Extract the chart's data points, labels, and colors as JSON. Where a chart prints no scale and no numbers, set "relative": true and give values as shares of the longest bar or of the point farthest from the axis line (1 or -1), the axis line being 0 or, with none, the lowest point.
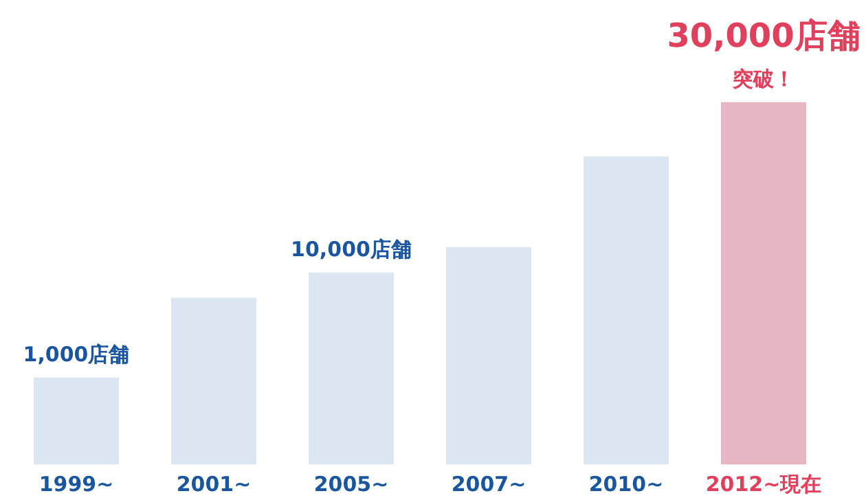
{
  "chart_data": {
    "type": "bar",
    "relative": true,
    "categories": [
      "1999~",
      "2001~",
      "2005~",
      "2007~",
      "2010~",
      "2012~現在"
    ],
    "values": [
      0.24,
      0.46,
      0.53,
      0.6,
      0.85,
      1
    ],
    "colors": [
      "#dce6f2",
      "#dce6f2",
      "#dce6f2",
      "#dce6f2",
      "#dce6f2",
      "#e8b6c2"
    ],
    "grid": false,
    "annotations": [
      {
        "text": "1,000店舗",
        "x": "1999~",
        "y": 0.24
      },
      {
        "text": "10,000店舗",
        "x": "2005~",
        "y": 0.53
      },
      {
        "text": "30,000店舗",
        "x": "2012~現在",
        "y": 1
      },
      {
        "text": "突破！",
        "x": "2012~現在",
        "y": 1
      }
    ]
  }
}
